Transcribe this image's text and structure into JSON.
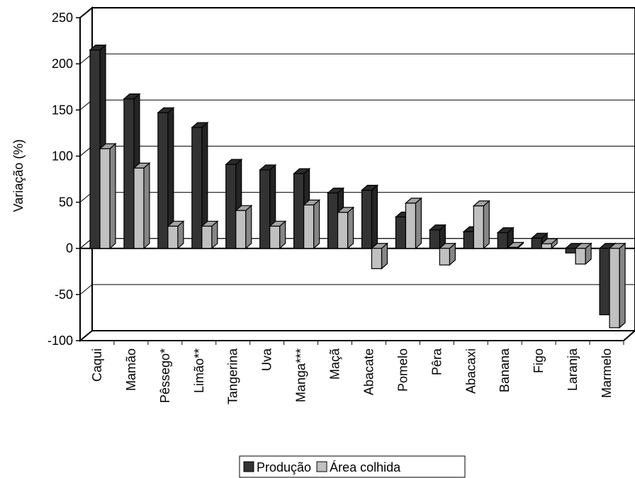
{
  "chart_data": {
    "type": "bar3d",
    "y_label": "Variação (%)",
    "categories": [
      "Caqui",
      "Mamão",
      "Pêssego*",
      "Limão**",
      "Tangerina",
      "Uva",
      "Manga***",
      "Maçã",
      "Abacate",
      "Pomelo",
      "Pêra",
      "Abacaxi",
      "Banana",
      "Figo",
      "Laranja",
      "Marmelo"
    ],
    "series": [
      {
        "name": "Produção",
        "color": "#333333",
        "values": [
          215,
          162,
          147,
          131,
          91,
          85,
          81,
          60,
          63,
          34,
          20,
          18,
          17,
          11,
          -5,
          -72
        ]
      },
      {
        "name": "Área colhida",
        "color": "#c0c0c0",
        "values": [
          108,
          87,
          24,
          24,
          41,
          24,
          47,
          39,
          -22,
          49,
          -18,
          46,
          1,
          5,
          -17,
          -86
        ]
      }
    ],
    "ylim": [
      -100,
      250
    ],
    "yticks": [
      -100,
      -50,
      0,
      50,
      100,
      150,
      200,
      250
    ],
    "grid": true,
    "legend": "bottom"
  }
}
